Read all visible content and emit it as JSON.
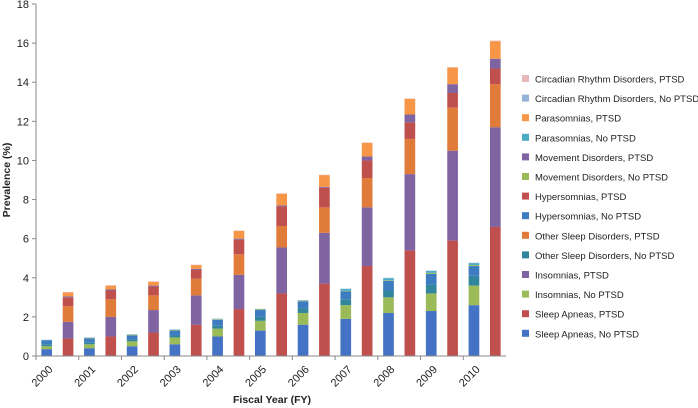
{
  "chart_data": {
    "type": "bar",
    "stacked": true,
    "xlabel": "Fiscal Year (FY)",
    "ylabel": "Prevalence (%)",
    "ylim": [
      0,
      18
    ],
    "yticks": [
      0,
      2,
      4,
      6,
      8,
      10,
      12,
      14,
      16,
      18
    ],
    "grid": false,
    "legend_position": "right",
    "x_labels": [
      "2000",
      "2001",
      "2002",
      "2003",
      "2004",
      "2005",
      "2006",
      "2007",
      "2008",
      "2009",
      "2010"
    ],
    "groups": [
      {
        "label": "2000",
        "variant": "No PTSD"
      },
      {
        "label": "2000",
        "variant": "PTSD"
      },
      {
        "label": "2001",
        "variant": "No PTSD"
      },
      {
        "label": "2001",
        "variant": "PTSD"
      },
      {
        "label": "2002",
        "variant": "No PTSD"
      },
      {
        "label": "2002",
        "variant": "PTSD"
      },
      {
        "label": "2003",
        "variant": "No PTSD"
      },
      {
        "label": "2003",
        "variant": "PTSD"
      },
      {
        "label": "2004",
        "variant": "No PTSD"
      },
      {
        "label": "2004",
        "variant": "PTSD"
      },
      {
        "label": "2005",
        "variant": "No PTSD"
      },
      {
        "label": "2005",
        "variant": "PTSD"
      },
      {
        "label": "2006",
        "variant": "No PTSD"
      },
      {
        "label": "2006",
        "variant": "PTSD"
      },
      {
        "label": "2007",
        "variant": "No PTSD"
      },
      {
        "label": "2007",
        "variant": "PTSD"
      },
      {
        "label": "2008",
        "variant": "No PTSD"
      },
      {
        "label": "2008",
        "variant": "PTSD"
      },
      {
        "label": "2009",
        "variant": "No PTSD"
      },
      {
        "label": "2009",
        "variant": "PTSD"
      },
      {
        "label": "2010",
        "variant": "No PTSD"
      },
      {
        "label": "2010",
        "variant": "PTSD"
      }
    ],
    "series": [
      {
        "name": "Sleep Apneas, No PTSD",
        "color": "#4472C4",
        "values": [
          0.35,
          0,
          0.4,
          0,
          0.5,
          0,
          0.6,
          0,
          1.0,
          0,
          1.3,
          0,
          1.6,
          0,
          1.9,
          0,
          2.2,
          0,
          2.3,
          0,
          2.6,
          0
        ]
      },
      {
        "name": "Sleep Apneas, PTSD",
        "color": "#C0504D",
        "values": [
          0,
          0.9,
          0,
          1.0,
          0,
          1.2,
          0,
          1.6,
          0,
          2.4,
          0,
          3.2,
          0,
          3.7,
          0,
          4.6,
          0,
          5.4,
          0,
          5.9,
          0,
          6.6
        ]
      },
      {
        "name": "Insomnias, No PTSD",
        "color": "#9BBB59",
        "values": [
          0.15,
          0,
          0.2,
          0,
          0.25,
          0,
          0.35,
          0,
          0.4,
          0,
          0.5,
          0,
          0.6,
          0,
          0.7,
          0,
          0.8,
          0,
          0.9,
          0,
          1.0,
          0
        ]
      },
      {
        "name": "Insomnias, PTSD",
        "color": "#8064A2",
        "values": [
          0,
          0.85,
          0,
          1.0,
          0,
          1.15,
          0,
          1.5,
          0,
          1.75,
          0,
          2.35,
          0,
          2.6,
          0,
          3.0,
          0,
          3.9,
          0,
          4.6,
          0,
          5.1
        ]
      },
      {
        "name": "Other Sleep Disorders, No PTSD",
        "color": "#31859C",
        "values": [
          0.1,
          0,
          0.1,
          0,
          0.1,
          0,
          0.1,
          0,
          0.15,
          0,
          0.2,
          0,
          0.25,
          0,
          0.3,
          0,
          0.35,
          0,
          0.45,
          0,
          0.5,
          0
        ]
      },
      {
        "name": "Other Sleep Disorders, PTSD",
        "color": "#E07B39",
        "values": [
          0,
          0.8,
          0,
          0.9,
          0,
          0.75,
          0,
          0.85,
          0,
          1.05,
          0,
          1.1,
          0,
          1.3,
          0,
          1.5,
          0,
          1.8,
          0,
          2.2,
          0,
          2.2
        ]
      },
      {
        "name": "Hypersomnias, No PTSD",
        "color": "#3E7CC2",
        "values": [
          0.2,
          0,
          0.2,
          0,
          0.2,
          0,
          0.25,
          0,
          0.3,
          0,
          0.35,
          0,
          0.35,
          0,
          0.4,
          0,
          0.5,
          0,
          0.55,
          0,
          0.5,
          0
        ]
      },
      {
        "name": "Hypersomnias, PTSD",
        "color": "#C0504D",
        "values": [
          0,
          0.45,
          0,
          0.45,
          0,
          0.45,
          0,
          0.45,
          0,
          0.75,
          0,
          1.0,
          0,
          1.0,
          0,
          0.9,
          0,
          0.85,
          0,
          0.75,
          0,
          0.8
        ]
      },
      {
        "name": "Movement Disorders, No PTSD",
        "color": "#9BBB59",
        "values": [
          0,
          0,
          0.02,
          0,
          0.03,
          0,
          0.03,
          0,
          0.03,
          0,
          0.03,
          0,
          0.03,
          0,
          0.03,
          0,
          0.03,
          0,
          0.05,
          0,
          0.05,
          0
        ]
      },
      {
        "name": "Movement Disorders, PTSD",
        "color": "#8064A2",
        "values": [
          0,
          0.05,
          0,
          0.05,
          0,
          0.05,
          0,
          0.05,
          0,
          0.05,
          0,
          0.05,
          0,
          0.05,
          0,
          0.2,
          0,
          0.4,
          0,
          0.45,
          0,
          0.5
        ]
      },
      {
        "name": "Parasomnias, No PTSD",
        "color": "#4BACC6",
        "values": [
          0.02,
          0,
          0.02,
          0,
          0.02,
          0,
          0.02,
          0,
          0.02,
          0,
          0.02,
          0,
          0.02,
          0,
          0.1,
          0,
          0.1,
          0,
          0.1,
          0,
          0.1,
          0
        ]
      },
      {
        "name": "Parasomnias, PTSD",
        "color": "#F79646",
        "values": [
          0,
          0.2,
          0,
          0.2,
          0,
          0.2,
          0,
          0.2,
          0,
          0.4,
          0,
          0.6,
          0,
          0.6,
          0,
          0.7,
          0,
          0.8,
          0,
          0.85,
          0,
          0.9
        ]
      },
      {
        "name": "Circadian Rhythm Disorders, No PTSD",
        "color": "#95B3D7",
        "values": [
          0.01,
          0,
          0.01,
          0,
          0.01,
          0,
          0.01,
          0,
          0.01,
          0,
          0.01,
          0,
          0.01,
          0,
          0.01,
          0,
          0.02,
          0,
          0.02,
          0,
          0.02,
          0
        ]
      },
      {
        "name": "Circadian Rhythm Disorders, PTSD",
        "color": "#E6B9B8",
        "values": [
          0,
          0.02,
          0,
          0.02,
          0,
          0.02,
          0,
          0.02,
          0,
          0.02,
          0,
          0.02,
          0,
          0.02,
          0,
          0.02,
          0,
          0.02,
          0,
          0.02,
          0,
          0.03
        ]
      }
    ]
  }
}
